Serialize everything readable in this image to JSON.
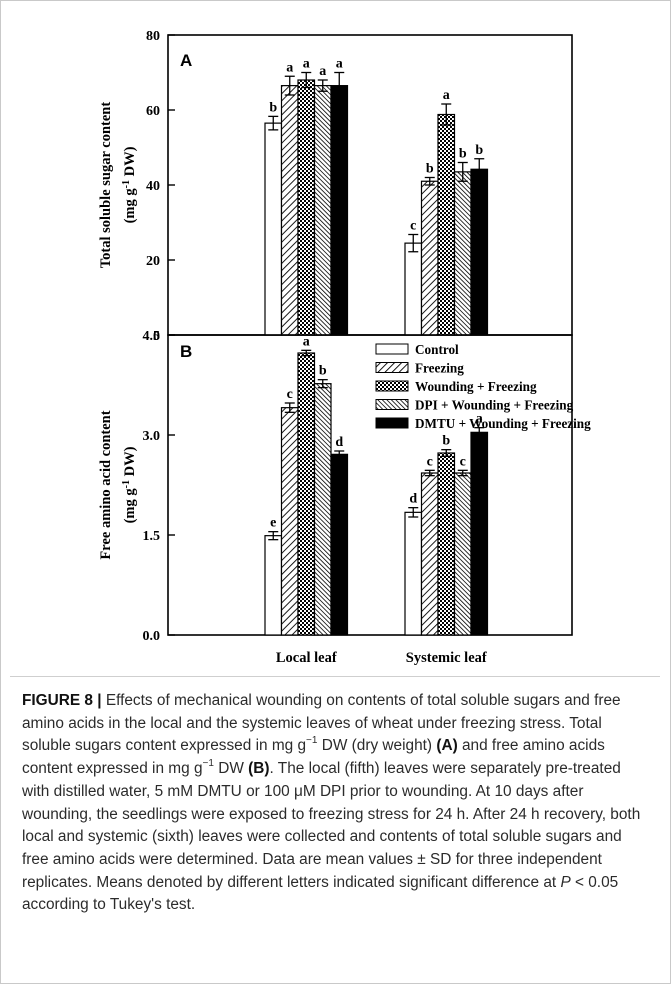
{
  "colors": {
    "ink": "#000000",
    "caption": "#2b2b2b",
    "border": "#c9c9c9"
  },
  "chart_data": [
    {
      "type": "bar",
      "panel_label": "A",
      "ylabel_line1": "Total soluble sugar content",
      "ylabel_line2_pre": "(mg g",
      "ylabel_line2_sup": "-1",
      "ylabel_line2_post": " DW)",
      "ylim": [
        0,
        80
      ],
      "yticks": [
        "0",
        "20",
        "40",
        "60",
        "80"
      ],
      "categories": [
        "Local leaf",
        "Systemic leaf"
      ],
      "series": [
        {
          "name": "Control",
          "values": [
            56.5,
            24.5
          ],
          "errors": [
            1.8,
            2.3
          ],
          "letters": [
            "b",
            "c"
          ]
        },
        {
          "name": "Freezing",
          "values": [
            66.5,
            41.0
          ],
          "errors": [
            2.5,
            1.0
          ],
          "letters": [
            "a",
            "b"
          ]
        },
        {
          "name": "Wounding + Freezing",
          "values": [
            68.0,
            58.8
          ],
          "errors": [
            2.0,
            2.8
          ],
          "letters": [
            "a",
            "a"
          ]
        },
        {
          "name": "DPI + Wounding + Freezing",
          "values": [
            66.5,
            43.5
          ],
          "errors": [
            1.5,
            2.5
          ],
          "letters": [
            "a",
            "b"
          ]
        },
        {
          "name": "DMTU + Wounding + Freezing",
          "values": [
            66.5,
            44.2
          ],
          "errors": [
            3.5,
            2.8
          ],
          "letters": [
            "a",
            "b"
          ]
        }
      ]
    },
    {
      "type": "bar",
      "panel_label": "B",
      "ylabel_line1": "Free amino acid content",
      "ylabel_line2_pre": "(mg g",
      "ylabel_line2_sup": "-1",
      "ylabel_line2_post": " DW)",
      "ylim": [
        0,
        4.5
      ],
      "yticks": [
        "0.0",
        "1.5",
        "3.0",
        "4.5"
      ],
      "categories": [
        "Local leaf",
        "Systemic leaf"
      ],
      "series": [
        {
          "name": "Control",
          "values": [
            1.49,
            1.84
          ],
          "errors": [
            0.06,
            0.07
          ],
          "letters": [
            "e",
            "d"
          ]
        },
        {
          "name": "Freezing",
          "values": [
            3.41,
            2.43
          ],
          "errors": [
            0.07,
            0.04
          ],
          "letters": [
            "c",
            "c"
          ]
        },
        {
          "name": "Wounding + Freezing",
          "values": [
            4.23,
            2.73
          ],
          "errors": [
            0.04,
            0.05
          ],
          "letters": [
            "a",
            "b"
          ]
        },
        {
          "name": "DPI + Wounding + Freezing",
          "values": [
            3.77,
            2.43
          ],
          "errors": [
            0.06,
            0.04
          ],
          "letters": [
            "b",
            "c"
          ]
        },
        {
          "name": "DMTU + Wounding + Freezing",
          "values": [
            2.71,
            3.04
          ],
          "errors": [
            0.05,
            0.07
          ],
          "letters": [
            "d",
            "a"
          ]
        }
      ]
    }
  ],
  "caption": {
    "figure_label": "FIGURE 8 |",
    "s1": " Effects of mechanical wounding on contents of total soluble sugars and free amino acids in the local and the systemic leaves of wheat under freezing stress. Total soluble sugars content expressed in mg g",
    "sup1": "−1",
    "s2": " DW (dry weight) ",
    "ref_a": "(A)",
    "s3": " and free amino acids content expressed in mg g",
    "sup2": "−1",
    "s4": " DW ",
    "ref_b": "(B)",
    "s5": ". The local (fifth) leaves were separately pre-treated with distilled water, 5 mM DMTU or 100 μM DPI prior to wounding. At 10 days after wounding, the seedlings were exposed to freezing stress for 24 h. After 24 h recovery, both local and systemic (sixth) leaves were collected and contents of total soluble sugars and free amino acids were determined. Data are mean values ± SD for three independent replicates. Means denoted by different letters indicated significant difference at ",
    "p_var": "P",
    "s6": " < 0.05 according to Tukey's test."
  }
}
